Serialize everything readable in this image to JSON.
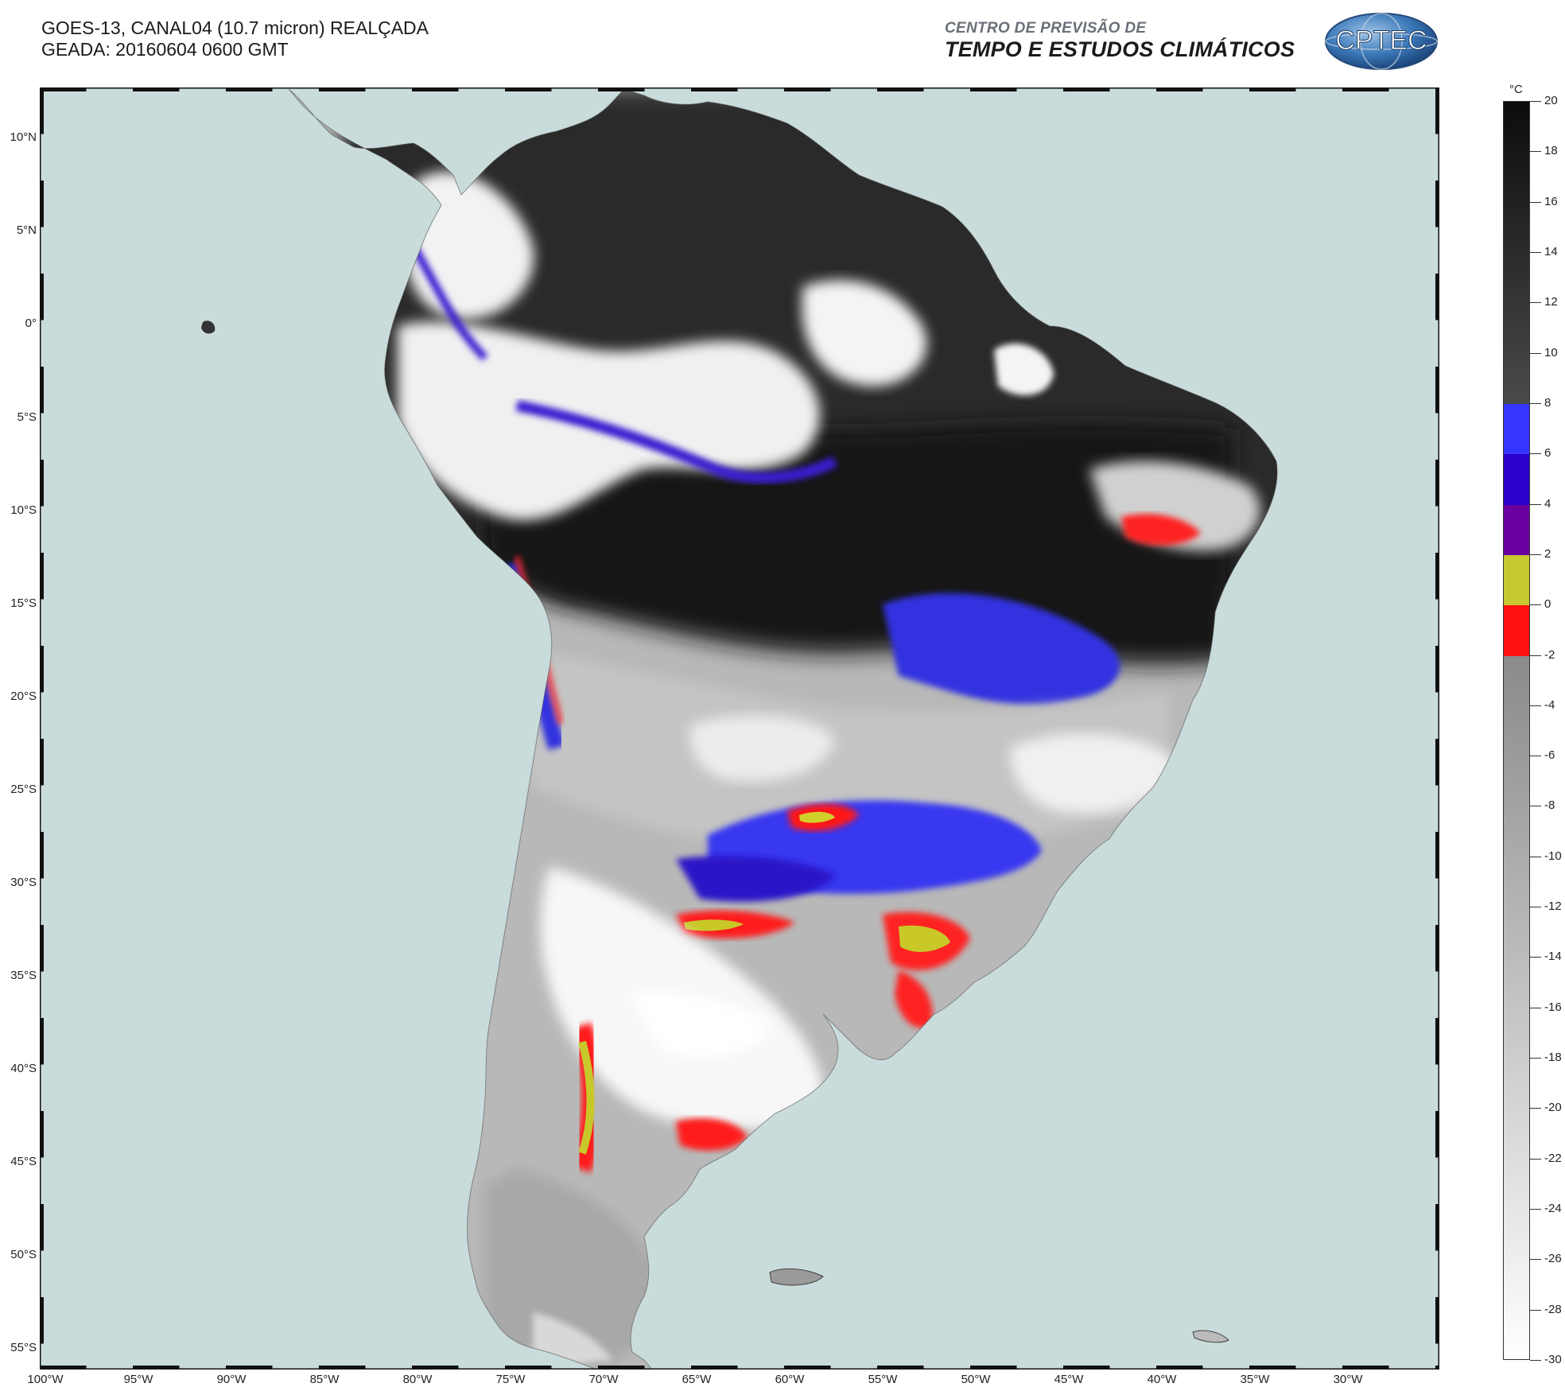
{
  "header": {
    "line1": "GOES-13, CANAL04 (10.7 micron) REALÇADA",
    "line2": "GEADA: 20160604 0600 GMT"
  },
  "institution": {
    "line1": "CENTRO DE PREVISÃO DE",
    "line2": "TEMPO E ESTUDOS CLIMÁTICOS",
    "logo_text": "CPTEC"
  },
  "map": {
    "ocean_color": "#c9dcdb",
    "lat_labels": [
      "10°N",
      "5°N",
      "0°",
      "5°S",
      "10°S",
      "15°S",
      "20°S",
      "25°S",
      "30°S",
      "35°S",
      "40°S",
      "45°S",
      "50°S",
      "55°S"
    ],
    "lon_labels": [
      "100°W",
      "95°W",
      "90°W",
      "85°W",
      "80°W",
      "75°W",
      "70°W",
      "65°W",
      "60°W",
      "55°W",
      "50°W",
      "45°W",
      "40°W",
      "35°W",
      "30°W"
    ],
    "extent": {
      "west": -100,
      "east": -25,
      "north": 12.6,
      "south": -56
    }
  },
  "colorbar": {
    "unit": "°C",
    "labels": [
      "20",
      "18",
      "16",
      "14",
      "12",
      "10",
      "8",
      "6",
      "4",
      "2",
      "0",
      "-2",
      "-4",
      "-6",
      "-8",
      "-10",
      "-12",
      "-14",
      "-16",
      "-18",
      "-20",
      "-22",
      "-24",
      "-26",
      "-28",
      "-30"
    ],
    "bands": [
      {
        "from": 20,
        "to": 8,
        "gradient": [
          "#0c0c0c",
          "#4a4a4a"
        ]
      },
      {
        "from": 8,
        "to": 6,
        "color": "#3535ff"
      },
      {
        "from": 6,
        "to": 4,
        "color": "#2a00cc"
      },
      {
        "from": 4,
        "to": 2,
        "color": "#6a00a0"
      },
      {
        "from": 2,
        "to": 0,
        "color": "#c8c830"
      },
      {
        "from": 0,
        "to": -2,
        "color": "#ff1010"
      },
      {
        "from": -2,
        "to": -30,
        "gradient": [
          "#8a8a8a",
          "#ffffff"
        ]
      }
    ]
  }
}
